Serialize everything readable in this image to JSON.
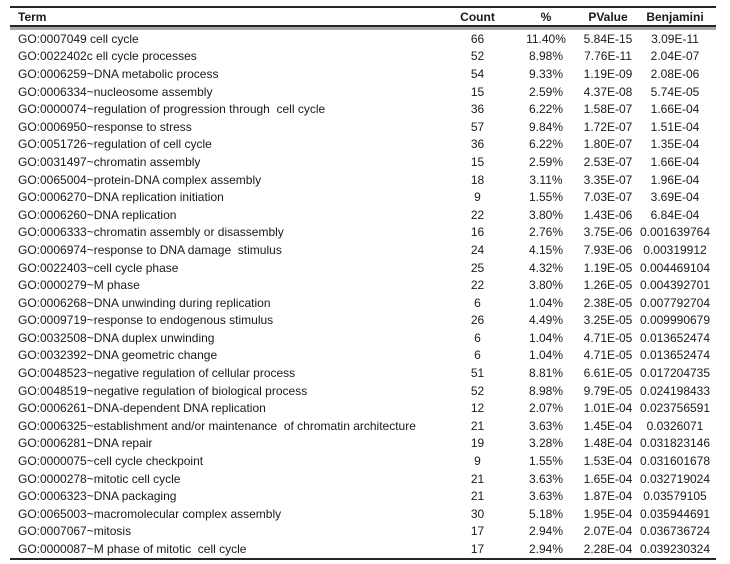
{
  "table": {
    "columns": [
      {
        "key": "term",
        "label": "Term"
      },
      {
        "key": "count",
        "label": "Count"
      },
      {
        "key": "pct",
        "label": "%"
      },
      {
        "key": "pvalue",
        "label": "PValue"
      },
      {
        "key": "benjamini",
        "label": "Benjamini"
      }
    ],
    "rows": [
      {
        "term": "GO:0007049 cell cycle",
        "count": "66",
        "pct": "11.40%",
        "pvalue": "5.84E-15",
        "benjamini": "3.09E-11"
      },
      {
        "term": "GO:0022402c ell cycle processes",
        "count": "52",
        "pct": "8.98%",
        "pvalue": "7.76E-11",
        "benjamini": "2.04E-07"
      },
      {
        "term": "GO:0006259~DNA metabolic process",
        "count": "54",
        "pct": "9.33%",
        "pvalue": "1.19E-09",
        "benjamini": "2.08E-06"
      },
      {
        "term": "GO:0006334~nucleosome assembly",
        "count": "15",
        "pct": "2.59%",
        "pvalue": "4.37E-08",
        "benjamini": "5.74E-05"
      },
      {
        "term": "GO:0000074~regulation of progression through  cell cycle",
        "count": "36",
        "pct": "6.22%",
        "pvalue": "1.58E-07",
        "benjamini": "1.66E-04"
      },
      {
        "term": "GO:0006950~response to stress",
        "count": "57",
        "pct": "9.84%",
        "pvalue": "1.72E-07",
        "benjamini": "1.51E-04"
      },
      {
        "term": "GO:0051726~regulation of cell cycle",
        "count": "36",
        "pct": "6.22%",
        "pvalue": "1.80E-07",
        "benjamini": "1.35E-04"
      },
      {
        "term": "GO:0031497~chromatin assembly",
        "count": "15",
        "pct": "2.59%",
        "pvalue": "2.53E-07",
        "benjamini": "1.66E-04"
      },
      {
        "term": "GO:0065004~protein-DNA complex assembly",
        "count": "18",
        "pct": "3.11%",
        "pvalue": "3.35E-07",
        "benjamini": "1.96E-04"
      },
      {
        "term": "GO:0006270~DNA replication initiation",
        "count": "9",
        "pct": "1.55%",
        "pvalue": "7.03E-07",
        "benjamini": "3.69E-04"
      },
      {
        "term": "GO:0006260~DNA replication",
        "count": "22",
        "pct": "3.80%",
        "pvalue": "1.43E-06",
        "benjamini": "6.84E-04"
      },
      {
        "term": "GO:0006333~chromatin assembly or disassembly",
        "count": "16",
        "pct": "2.76%",
        "pvalue": "3.75E-06",
        "benjamini": "0.001639764"
      },
      {
        "term": "GO:0006974~response to DNA damage  stimulus",
        "count": "24",
        "pct": "4.15%",
        "pvalue": "7.93E-06",
        "benjamini": "0.00319912"
      },
      {
        "term": "GO:0022403~cell cycle phase",
        "count": "25",
        "pct": "4.32%",
        "pvalue": "1.19E-05",
        "benjamini": "0.004469104"
      },
      {
        "term": "GO:0000279~M phase",
        "count": "22",
        "pct": "3.80%",
        "pvalue": "1.26E-05",
        "benjamini": "0.004392701"
      },
      {
        "term": "GO:0006268~DNA unwinding during replication",
        "count": "6",
        "pct": "1.04%",
        "pvalue": "2.38E-05",
        "benjamini": "0.007792704"
      },
      {
        "term": "GO:0009719~response to endogenous stimulus",
        "count": "26",
        "pct": "4.49%",
        "pvalue": "3.25E-05",
        "benjamini": "0.009990679"
      },
      {
        "term": "GO:0032508~DNA duplex unwinding",
        "count": "6",
        "pct": "1.04%",
        "pvalue": "4.71E-05",
        "benjamini": "0.013652474"
      },
      {
        "term": "GO:0032392~DNA geometric change",
        "count": "6",
        "pct": "1.04%",
        "pvalue": "4.71E-05",
        "benjamini": "0.013652474"
      },
      {
        "term": "GO:0048523~negative regulation of cellular process",
        "count": "51",
        "pct": "8.81%",
        "pvalue": "6.61E-05",
        "benjamini": "0.017204735"
      },
      {
        "term": "GO:0048519~negative regulation of biological process",
        "count": "52",
        "pct": "8.98%",
        "pvalue": "9.79E-05",
        "benjamini": "0.024198433"
      },
      {
        "term": "GO:0006261~DNA-dependent DNA replication",
        "count": "12",
        "pct": "2.07%",
        "pvalue": "1.01E-04",
        "benjamini": "0.023756591"
      },
      {
        "term": "GO:0006325~establishment and/or maintenance  of chromatin architecture",
        "count": "21",
        "pct": "3.63%",
        "pvalue": "1.45E-04",
        "benjamini": "0.0326071"
      },
      {
        "term": "GO:0006281~DNA repair",
        "count": "19",
        "pct": "3.28%",
        "pvalue": "1.48E-04",
        "benjamini": "0.031823146"
      },
      {
        "term": "GO:0000075~cell cycle checkpoint",
        "count": "9",
        "pct": "1.55%",
        "pvalue": "1.53E-04",
        "benjamini": "0.031601678"
      },
      {
        "term": "GO:0000278~mitotic cell cycle",
        "count": "21",
        "pct": "3.63%",
        "pvalue": "1.65E-04",
        "benjamini": "0.032719024"
      },
      {
        "term": "GO:0006323~DNA packaging",
        "count": "21",
        "pct": "3.63%",
        "pvalue": "1.87E-04",
        "benjamini": "0.03579105"
      },
      {
        "term": "GO:0065003~macromolecular complex assembly",
        "count": "30",
        "pct": "5.18%",
        "pvalue": "1.95E-04",
        "benjamini": "0.035944691"
      },
      {
        "term": "GO:0007067~mitosis",
        "count": "17",
        "pct": "2.94%",
        "pvalue": "2.07E-04",
        "benjamini": "0.036736724"
      },
      {
        "term": "GO:0000087~M phase of mitotic  cell cycle",
        "count": "17",
        "pct": "2.94%",
        "pvalue": "2.28E-04",
        "benjamini": "0.039230324"
      }
    ]
  }
}
